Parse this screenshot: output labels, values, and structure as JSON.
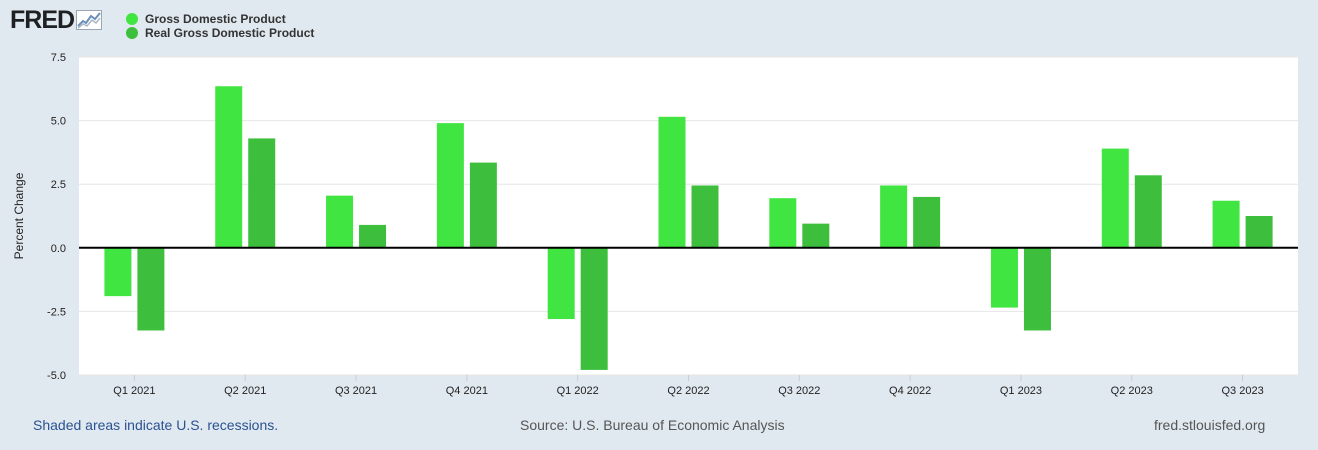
{
  "header": {
    "logo_text": "FRED",
    "legend": [
      {
        "label": "Gross Domestic Product",
        "color": "#41e541"
      },
      {
        "label": "Real Gross Domestic Product",
        "color": "#3dbf3d"
      }
    ]
  },
  "footer": {
    "note": "Shaded areas indicate U.S. recessions.",
    "source": "Source: U.S. Bureau of Economic Analysis",
    "site": "fred.stlouisfed.org"
  },
  "chart_data": {
    "type": "bar",
    "title": "",
    "xlabel": "",
    "ylabel": "Percent Change",
    "ylim": [
      -5.0,
      7.5
    ],
    "yticks": [
      "-5.0",
      "-2.5",
      "0.0",
      "2.5",
      "5.0",
      "7.5"
    ],
    "ytick_values": [
      -5.0,
      -2.5,
      0.0,
      2.5,
      5.0,
      7.5
    ],
    "categories": [
      "Q1 2021",
      "Q2 2021",
      "Q3 2021",
      "Q4 2021",
      "Q1 2022",
      "Q2 2022",
      "Q3 2022",
      "Q4 2022",
      "Q1 2023",
      "Q2 2023",
      "Q3 2023"
    ],
    "series": [
      {
        "name": "Gross Domestic Product",
        "color": "#41e541",
        "values": [
          -1.9,
          6.35,
          2.05,
          4.9,
          -2.8,
          5.15,
          1.95,
          2.45,
          -2.35,
          3.9,
          1.85
        ]
      },
      {
        "name": "Real Gross Domestic Product",
        "color": "#3dbf3d",
        "values": [
          -3.25,
          4.3,
          0.9,
          3.35,
          -4.8,
          2.45,
          0.95,
          2.0,
          -3.25,
          2.85,
          1.25
        ]
      }
    ],
    "grid": true,
    "legend_position": "top-left"
  }
}
